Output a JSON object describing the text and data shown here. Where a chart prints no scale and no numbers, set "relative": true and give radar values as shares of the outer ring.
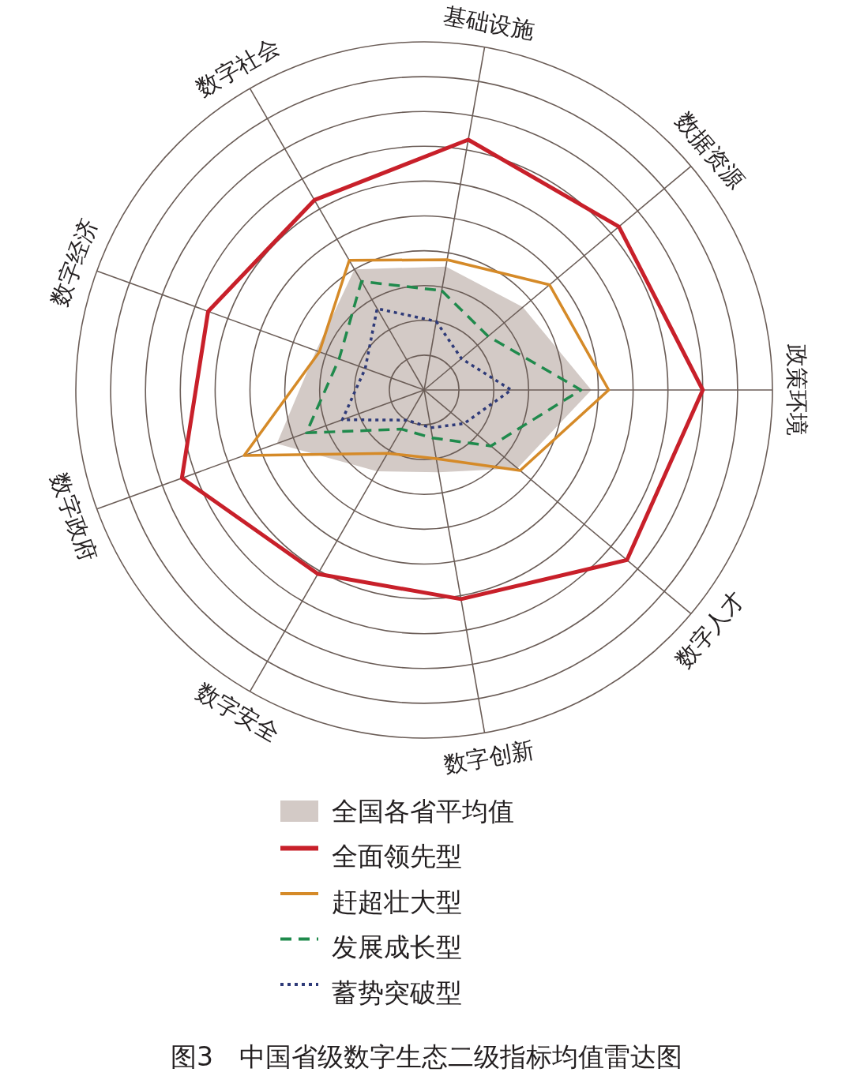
{
  "chart_data": {
    "type": "radar",
    "title": "图3　中国省级数字生态二级指标均值雷达图",
    "relative": true,
    "grid": true,
    "legend": "bottom",
    "categories": [
      "基础设施",
      "数据资源",
      "政策环境",
      "数字人才",
      "数字创新",
      "数字安全",
      "数字政府",
      "数字经济",
      "数字社会"
    ],
    "series": [
      {
        "name": "全国各省平均值",
        "type": "area",
        "color": "#d3cac6",
        "values": [
          0.36,
          0.37,
          0.48,
          0.35,
          0.24,
          0.27,
          0.45,
          0.33,
          0.4
        ]
      },
      {
        "name": "全面领先型",
        "line_style": "solid",
        "color": "#c8202a",
        "values": [
          0.73,
          0.73,
          0.8,
          0.76,
          0.61,
          0.61,
          0.74,
          0.66,
          0.63
        ]
      },
      {
        "name": "赶超壮大型",
        "line_style": "solid",
        "color": "#d58a28",
        "values": [
          0.38,
          0.47,
          0.53,
          0.36,
          0.2,
          0.21,
          0.55,
          0.32,
          0.43
        ]
      },
      {
        "name": "发展成长型",
        "line_style": "dashed",
        "color": "#1f8a4c",
        "values": [
          0.29,
          0.24,
          0.45,
          0.25,
          0.14,
          0.13,
          0.36,
          0.26,
          0.36
        ]
      },
      {
        "name": "蓄势突破型",
        "line_style": "dotted",
        "color": "#2e3a78",
        "values": [
          0.2,
          0.14,
          0.25,
          0.15,
          0.11,
          0.1,
          0.25,
          0.18,
          0.27
        ]
      }
    ]
  }
}
